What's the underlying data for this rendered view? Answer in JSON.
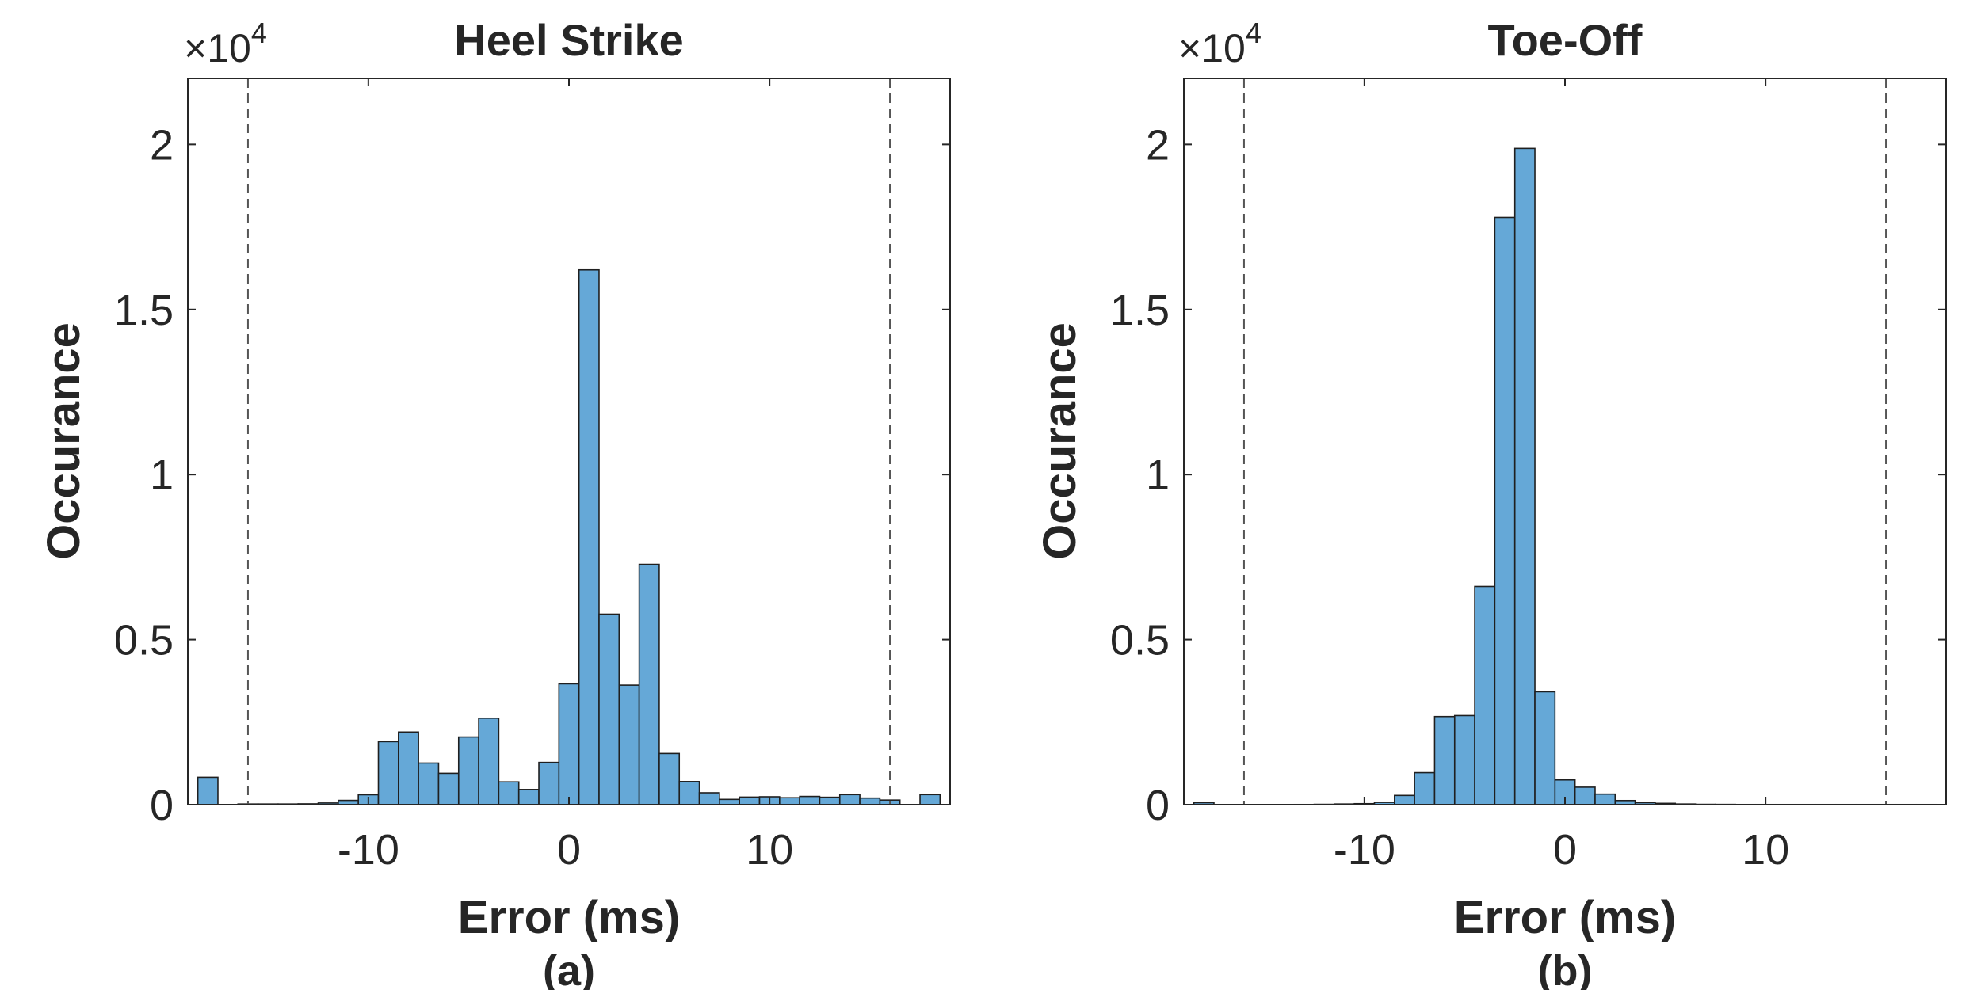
{
  "chart_data": [
    {
      "type": "bar",
      "title": "Heel Strike",
      "xlabel": "Error (ms)",
      "ylabel": "Occurance",
      "caption": "(a)",
      "exponent_label": "×10",
      "exponent": "4",
      "xlim": [
        -19,
        19
      ],
      "ylim": [
        0,
        22000
      ],
      "xticks": [
        -10,
        0,
        10
      ],
      "xtick_labels": [
        "-10",
        "0",
        "10"
      ],
      "yticks": [
        0,
        5000,
        10000,
        15000,
        20000
      ],
      "ytick_labels": [
        "0",
        "0.5",
        "1",
        "1.5",
        "2"
      ],
      "bin_width": 1,
      "threshold_lines": [
        -16,
        16
      ],
      "bin_centers": [
        -18,
        -17,
        -16,
        -15,
        -14,
        -13,
        -12,
        -11,
        -10,
        -9,
        -8,
        -7,
        -6,
        -5,
        -4,
        -3,
        -2,
        -1,
        0,
        1,
        2,
        3,
        4,
        5,
        6,
        7,
        8,
        9,
        10,
        11,
        12,
        13,
        14,
        15,
        16,
        17,
        18
      ],
      "values": [
        830,
        0,
        20,
        20,
        20,
        25,
        50,
        130,
        300,
        1910,
        2200,
        1260,
        950,
        2050,
        2620,
        690,
        460,
        1280,
        3660,
        16200,
        5770,
        3620,
        7280,
        1550,
        700,
        360,
        160,
        230,
        240,
        210,
        250,
        225,
        305,
        200,
        140,
        0,
        305
      ]
    },
    {
      "type": "bar",
      "title": "Toe-Off",
      "xlabel": "Error (ms)",
      "ylabel": "Occurance",
      "caption": "(b)",
      "exponent_label": "×10",
      "exponent": "4",
      "xlim": [
        -19,
        19
      ],
      "ylim": [
        0,
        22000
      ],
      "xticks": [
        -10,
        0,
        10
      ],
      "xtick_labels": [
        "-10",
        "0",
        "10"
      ],
      "yticks": [
        0,
        5000,
        10000,
        15000,
        20000
      ],
      "ytick_labels": [
        "0",
        "0.5",
        "1",
        "1.5",
        "2"
      ],
      "bin_width": 1,
      "threshold_lines": [
        -16,
        16
      ],
      "bin_centers": [
        -18,
        -17,
        -16,
        -15,
        -14,
        -13,
        -12,
        -11,
        -10,
        -9,
        -8,
        -7,
        -6,
        -5,
        -4,
        -3,
        -2,
        -1,
        0,
        1,
        2,
        3,
        4,
        5,
        6,
        7,
        8,
        9,
        10,
        11,
        12,
        13,
        14,
        15,
        16,
        17,
        18
      ],
      "values": [
        60,
        0,
        0,
        0,
        0,
        5,
        10,
        20,
        30,
        70,
        280,
        970,
        2670,
        2700,
        6610,
        17790,
        19880,
        3420,
        750,
        530,
        320,
        125,
        60,
        40,
        20,
        10,
        8,
        5,
        5,
        5,
        5,
        5,
        5,
        5,
        5,
        5,
        5
      ]
    }
  ],
  "colors": {
    "bar_fill": "#65a8d7",
    "bar_edge": "#1f1f1f",
    "text": "#262626",
    "axis": "#262626",
    "threshold": "#555555"
  }
}
